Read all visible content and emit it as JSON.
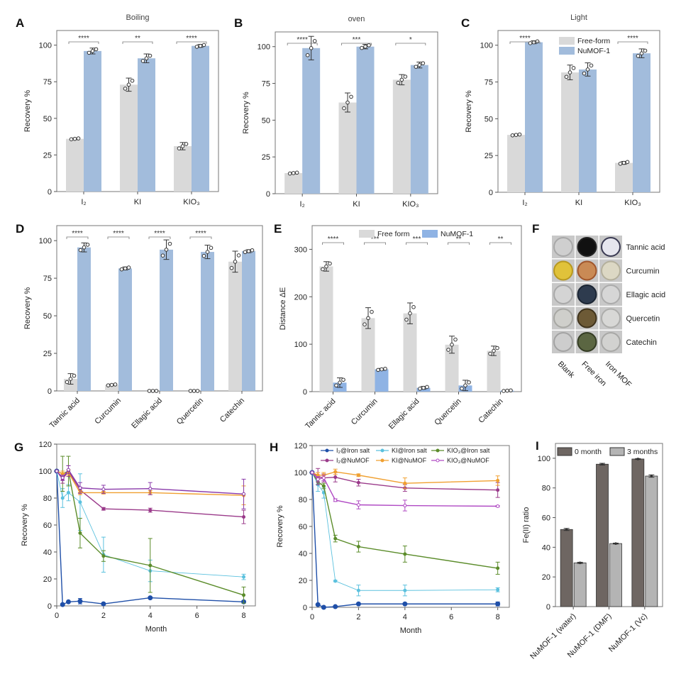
{
  "colors": {
    "free": "#d9d9d9",
    "numof": "#a2bcdc",
    "numof_e": "#8fb3e4",
    "dark": "#6e6662",
    "light": "#b4b4b4",
    "points": "#333333"
  },
  "chart_data": [
    {
      "id": "A",
      "type": "bar",
      "panel_label": "A",
      "title": "Boiling",
      "xlabel": "",
      "ylabel": "Recovery %",
      "ylim": [
        0,
        110
      ],
      "yticks": [
        0,
        25,
        50,
        75,
        100
      ],
      "categories": [
        "I₂",
        "KI",
        "KIO₃"
      ],
      "series": [
        {
          "name": "Free-form",
          "values": [
            36,
            73,
            31
          ],
          "errors": [
            0.5,
            4.5,
            2.5
          ]
        },
        {
          "name": "NuMOF-1",
          "values": [
            96,
            91,
            99.5
          ],
          "errors": [
            2,
            3,
            1
          ]
        }
      ],
      "significance": [
        "****",
        "**",
        "****"
      ]
    },
    {
      "id": "B",
      "type": "bar",
      "panel_label": "B",
      "title": "oven",
      "xlabel": "",
      "ylabel": "Recovery %",
      "ylim": [
        0,
        110
      ],
      "yticks": [
        0,
        25,
        50,
        75,
        100
      ],
      "categories": [
        "I₂",
        "KI",
        "KIO₃"
      ],
      "series": [
        {
          "name": "Free-form",
          "values": [
            14,
            62,
            77.5
          ],
          "errors": [
            0.5,
            6.5,
            3.5
          ]
        },
        {
          "name": "NuMOF-1",
          "values": [
            99,
            100,
            87.5
          ],
          "errors": [
            8,
            1.5,
            2
          ]
        }
      ],
      "significance": [
        "****",
        "***",
        "*"
      ]
    },
    {
      "id": "C",
      "type": "bar",
      "panel_label": "C",
      "title": "Light",
      "xlabel": "",
      "ylabel": "Recovery %",
      "ylim": [
        0,
        110
      ],
      "yticks": [
        0,
        25,
        50,
        75,
        100
      ],
      "categories": [
        "I₂",
        "KI",
        "KIO₃"
      ],
      "series": [
        {
          "name": "Free-form",
          "values": [
            39,
            81.5,
            20
          ],
          "errors": [
            0.5,
            5,
            1
          ]
        },
        {
          "name": "NuMOF-1",
          "values": [
            102,
            83.5,
            94.5
          ],
          "errors": [
            1,
            4.5,
            3
          ]
        }
      ],
      "significance": [
        "****",
        "",
        "****"
      ],
      "legend": {
        "position": "top-center",
        "entries": [
          "Free-form",
          "NuMOF-1"
        ]
      }
    },
    {
      "id": "D",
      "type": "bar",
      "panel_label": "D",
      "title": "",
      "xlabel": "",
      "ylabel": "Recovery %",
      "ylim": [
        0,
        110
      ],
      "yticks": [
        0,
        25,
        50,
        75,
        100
      ],
      "categories": [
        "Tannic acid",
        "Curcumin",
        "Ellagic acid",
        "Quercetin",
        "Catechin"
      ],
      "series": [
        {
          "name": "Free-form",
          "values": [
            8,
            4,
            0,
            0,
            86
          ],
          "errors": [
            3.5,
            0.5,
            0,
            0,
            7
          ]
        },
        {
          "name": "NuMOF-1",
          "values": [
            95.5,
            81.5,
            94,
            92.5,
            93
          ],
          "errors": [
            3,
            1,
            6.5,
            4.5,
            1
          ]
        }
      ],
      "significance": [
        "****",
        "****",
        "****",
        "****",
        ""
      ]
    },
    {
      "id": "E",
      "type": "bar",
      "panel_label": "E",
      "title": "",
      "xlabel": "",
      "ylabel": "Distance ΔE",
      "ylim": [
        0,
        350
      ],
      "yticks": [
        0,
        100,
        200,
        300
      ],
      "categories": [
        "Tannic acid",
        "Curcumin",
        "Ellagic acid",
        "Quercetin",
        "Catechin"
      ],
      "series": [
        {
          "name": "Free form",
          "values": [
            264,
            155,
            165,
            99,
            86
          ],
          "errors": [
            10,
            22,
            22,
            18,
            10
          ]
        },
        {
          "name": "NuMOF-1",
          "values": [
            19,
            47,
            8,
            13,
            2
          ],
          "errors": [
            10,
            2,
            3,
            11,
            1
          ]
        }
      ],
      "significance": [
        "****",
        "***",
        "***",
        "**",
        "**"
      ],
      "legend": {
        "position": "top-center",
        "entries": [
          "Free form",
          "NuMOF-1"
        ]
      }
    },
    {
      "id": "G",
      "type": "line",
      "panel_label": "G",
      "title": "",
      "xlabel": "Month",
      "ylabel": "Recovery %",
      "xlim": [
        0,
        8.5
      ],
      "ylim": [
        0,
        120
      ],
      "xticks": [
        0,
        2,
        4,
        6,
        8
      ],
      "yticks": [
        0,
        20,
        40,
        60,
        80,
        100,
        120
      ],
      "x": [
        0,
        0.25,
        0.5,
        1,
        2,
        4,
        8
      ],
      "series": [
        {
          "name": "I₂@Iron salt",
          "color": "#1f4fa8",
          "values": [
            100,
            1,
            3,
            3.5,
            1.5,
            6,
            3
          ],
          "errors": [
            0,
            0.5,
            0.5,
            2,
            0.5,
            0.5,
            1
          ]
        },
        {
          "name": "KI@Iron salt",
          "color": "#5bc1de",
          "values": [
            100,
            80,
            84,
            77,
            38,
            26,
            21.5
          ],
          "errors": [
            0,
            7,
            6,
            21,
            13,
            8,
            2
          ]
        },
        {
          "name": "KIO₃@Iron salt",
          "color": "#5b8c2a",
          "values": [
            100,
            98,
            100,
            54,
            37,
            30,
            8
          ],
          "errors": [
            0,
            13,
            11,
            11,
            4,
            20,
            6
          ]
        },
        {
          "name": "I₂@NuMOF",
          "color": "#9a3a8a",
          "values": [
            100,
            94,
            100,
            86,
            72,
            71,
            66
          ],
          "errors": [
            0,
            3,
            4,
            2,
            1,
            1.5,
            5
          ]
        },
        {
          "name": "KI@NuMOF",
          "color": "#f0a030",
          "values": [
            100,
            98,
            99,
            84,
            84,
            84,
            82
          ],
          "errors": [
            0,
            2,
            2,
            1.5,
            1,
            1.5,
            7
          ]
        },
        {
          "name": "KIO₃@NuMOF",
          "color": "#8a3aaa",
          "values": [
            100,
            95,
            101,
            87.5,
            86.5,
            87,
            83
          ],
          "errors": [
            0,
            2,
            3,
            4,
            3,
            4.5,
            11
          ]
        }
      ]
    },
    {
      "id": "H",
      "type": "line",
      "panel_label": "H",
      "title": "",
      "xlabel": "Month",
      "ylabel": "Recovery %",
      "xlim": [
        0,
        8.5
      ],
      "ylim": [
        0,
        120
      ],
      "xticks": [
        0,
        2,
        4,
        6,
        8
      ],
      "yticks": [
        0,
        20,
        40,
        60,
        80,
        100,
        120
      ],
      "x": [
        0,
        0.25,
        0.5,
        1,
        2,
        4,
        8
      ],
      "legend": {
        "position": "top",
        "entries": [
          "I₂@Iron salt",
          "KI@Iron salt",
          "KIO₃@Iron salt",
          "I₂@NuMOF",
          "KI@NuMOF",
          "KIO₃@NuMOF"
        ]
      },
      "series": [
        {
          "name": "I₂@Iron salt",
          "color": "#1f4fa8",
          "values": [
            100,
            2,
            0,
            0.5,
            2.5,
            2.5,
            2.5
          ],
          "errors": [
            0,
            0.5,
            0.5,
            0.5,
            0.5,
            0.5,
            1.5
          ]
        },
        {
          "name": "KI@Iron salt",
          "color": "#5bc1de",
          "values": [
            100,
            91,
            85,
            19.5,
            12.5,
            12.5,
            13
          ],
          "errors": [
            0,
            5,
            4,
            0.5,
            4,
            4,
            1.5
          ]
        },
        {
          "name": "KIO₃@Iron salt",
          "color": "#5b8c2a",
          "values": [
            100,
            93,
            90,
            51,
            45,
            39.5,
            29
          ],
          "errors": [
            0,
            2,
            2,
            2.5,
            4,
            6,
            4.5
          ]
        },
        {
          "name": "I₂@NuMOF",
          "color": "#9a3a8a",
          "values": [
            100,
            97,
            96,
            96.5,
            92.5,
            88.5,
            87
          ],
          "errors": [
            0,
            6,
            3,
            3.5,
            2.5,
            2.5,
            5.5
          ]
        },
        {
          "name": "KI@NuMOF",
          "color": "#f0a030",
          "values": [
            100,
            98,
            98,
            100.5,
            98,
            92,
            94
          ],
          "errors": [
            0,
            2,
            2,
            2,
            1,
            4,
            3.5
          ]
        },
        {
          "name": "KIO₃@NuMOF",
          "color": "#b04ac4",
          "values": [
            100,
            95,
            96,
            79.5,
            76,
            75.5,
            75
          ],
          "errors": [
            0,
            2,
            2,
            1,
            3,
            4,
            0.5
          ]
        }
      ]
    },
    {
      "id": "I",
      "type": "bar",
      "panel_label": "I",
      "title": "",
      "xlabel": "",
      "ylabel": "Fe(II) ratio",
      "ylim": [
        0,
        110
      ],
      "yticks": [
        0,
        20,
        40,
        60,
        80,
        100
      ],
      "categories": [
        "NuMOF-1 (water)",
        "NuMOF-1 (DMF)",
        "NuMOF-1 (Vc)"
      ],
      "series": [
        {
          "name": "0 month",
          "values": [
            52,
            96,
            99.5
          ],
          "errors": [
            0.7,
            0.6,
            0.3
          ]
        },
        {
          "name": "3 months",
          "values": [
            29.5,
            42.5,
            88
          ],
          "errors": [
            0.4,
            0.3,
            0.8
          ]
        }
      ],
      "legend": {
        "position": "top-right",
        "entries": [
          "0 month",
          "3 months"
        ]
      }
    }
  ],
  "panel_f": {
    "label": "F",
    "rows": [
      "Tannic acid",
      "Curcumin",
      "Ellagic acid",
      "Quercetin",
      "Catechin"
    ],
    "columns": [
      "Blank",
      "Free iron",
      "Iron MOF"
    ],
    "well_colors": [
      [
        "#cfcfcf",
        "#111111",
        "#e6e6ee"
      ],
      [
        "#e0c23a",
        "#c98a55",
        "#dcd8c4"
      ],
      [
        "#d4d4d4",
        "#2e3b4e",
        "#d6d6d6"
      ],
      [
        "#cfcfcb",
        "#6d5a36",
        "#d8d8d6"
      ],
      [
        "#cdcdcd",
        "#5b6642",
        "#d2d2d0"
      ]
    ],
    "ring_colors": [
      [
        "#a8a8a8",
        "#222",
        "#3a3a52"
      ],
      [
        "#b79820",
        "#a0562c",
        "#b4b09c"
      ],
      [
        "#a9a9a9",
        "#1b2533",
        "#ababab"
      ],
      [
        "#a7a7a3",
        "#3f331c",
        "#adadab"
      ],
      [
        "#a3a3a3",
        "#343c24",
        "#a8a8a6"
      ]
    ]
  }
}
